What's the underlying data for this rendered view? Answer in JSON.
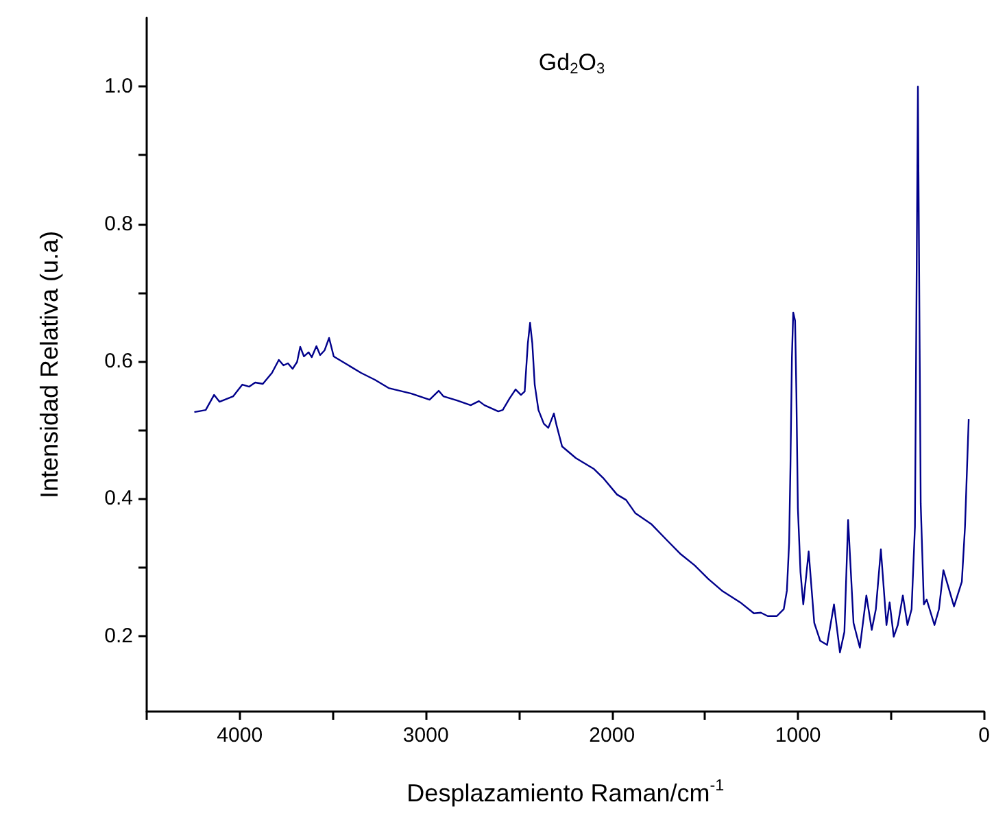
{
  "chart_data": {
    "type": "line",
    "title": "Gd$_{2}$O$_{3}$",
    "xlabel": "Desplazamiento Raman/cm$^{-1}$",
    "ylabel": "Intensidad Relativa (u.a)",
    "xlim": [
      4500,
      0
    ],
    "ylim": [
      0.09,
      1.1
    ],
    "xticks": [
      {
        "value": 4500,
        "label": null
      },
      4000,
      {
        "value": 3500,
        "label": null
      },
      3000,
      {
        "value": 2500,
        "label": null
      },
      2000,
      {
        "value": 1500,
        "label": null
      },
      1000,
      {
        "value": 500,
        "label": null
      },
      0
    ],
    "yticks": [
      0.2,
      {
        "value": 0.3,
        "label": null
      },
      0.4,
      {
        "value": 0.5,
        "label": null
      },
      0.6,
      {
        "value": 0.7,
        "label": null
      },
      0.8,
      {
        "value": 0.9,
        "label": null
      },
      {
        "value": 1.0,
        "label": "1.0"
      }
    ],
    "series": [
      {
        "color": "#00008b",
        "x": [
          4244,
          4183,
          4138,
          4109,
          4035,
          3986,
          3949,
          3917,
          3876,
          3827,
          3790,
          3765,
          3741,
          3716,
          3692,
          3675,
          3655,
          3630,
          3613,
          3588,
          3568,
          3544,
          3520,
          3495,
          3446,
          3348,
          3274,
          3200,
          3078,
          2980,
          2931,
          2906,
          2833,
          2759,
          2715,
          2685,
          2611,
          2587,
          2550,
          2518,
          2489,
          2469,
          2452,
          2440,
          2428,
          2415,
          2395,
          2366,
          2342,
          2312,
          2297,
          2268,
          2194,
          2096,
          2047,
          1973,
          1924,
          1875,
          1789,
          1703,
          1630,
          1556,
          1482,
          1409,
          1311,
          1237,
          1200,
          1163,
          1114,
          1077,
          1060,
          1048,
          1041,
          1033,
          1026,
          1016,
          1009,
          1001,
          987,
          972,
          943,
          913,
          881,
          844,
          807,
          775,
          751,
          731,
          702,
          668,
          633,
          604,
          582,
          555,
          525,
          508,
          486,
          464,
          437,
          412,
          390,
          372,
          356,
          341,
          324,
          309,
          267,
          243,
          219,
          162,
          120,
          103,
          83
        ],
        "values": [
          0.526,
          0.529,
          0.551,
          0.541,
          0.549,
          0.566,
          0.563,
          0.569,
          0.567,
          0.583,
          0.602,
          0.594,
          0.597,
          0.589,
          0.599,
          0.621,
          0.607,
          0.613,
          0.606,
          0.622,
          0.609,
          0.616,
          0.634,
          0.607,
          0.599,
          0.583,
          0.573,
          0.561,
          0.553,
          0.544,
          0.557,
          0.549,
          0.543,
          0.536,
          0.542,
          0.536,
          0.527,
          0.529,
          0.546,
          0.559,
          0.551,
          0.556,
          0.626,
          0.656,
          0.626,
          0.566,
          0.529,
          0.509,
          0.503,
          0.524,
          0.506,
          0.476,
          0.459,
          0.443,
          0.43,
          0.406,
          0.398,
          0.379,
          0.363,
          0.339,
          0.319,
          0.303,
          0.283,
          0.266,
          0.249,
          0.233,
          0.234,
          0.229,
          0.229,
          0.239,
          0.266,
          0.336,
          0.446,
          0.606,
          0.671,
          0.659,
          0.553,
          0.386,
          0.293,
          0.246,
          0.323,
          0.219,
          0.193,
          0.187,
          0.246,
          0.176,
          0.206,
          0.369,
          0.219,
          0.183,
          0.259,
          0.209,
          0.239,
          0.326,
          0.216,
          0.249,
          0.199,
          0.216,
          0.259,
          0.216,
          0.239,
          0.359,
          1.0,
          0.393,
          0.246,
          0.253,
          0.216,
          0.239,
          0.296,
          0.243,
          0.279,
          0.359,
          0.516
        ]
      }
    ]
  }
}
